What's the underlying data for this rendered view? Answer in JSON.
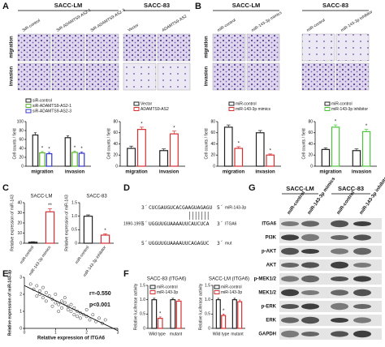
{
  "A": {
    "label": "A",
    "groups": [
      "SACC-LM",
      "SACC-83"
    ],
    "columns": [
      "SiR-control",
      "SiR-ADAMTS9-AS2-1",
      "SiR-ADAMTS9-AS2-3",
      "Vector",
      "ADAMTS9-AS2"
    ],
    "rows": [
      "migration",
      "invasion"
    ],
    "charts": [
      {
        "type": "bar",
        "ylabel": "Cell counts / field",
        "categories": [
          "migration",
          "invasion"
        ],
        "ylim": [
          0,
          100
        ],
        "yticks": [
          0,
          20,
          40,
          60,
          80,
          100
        ],
        "series": [
          {
            "name": "siR-control",
            "color": "#222222",
            "values": [
              70,
              64
            ],
            "errors": [
              5,
              4
            ]
          },
          {
            "name": "siR-ADAMTS9-AS2-1",
            "color": "#5cb531",
            "values": [
              30,
              31
            ],
            "errors": [
              3,
              3
            ],
            "sig": [
              "*",
              "*"
            ]
          },
          {
            "name": "siR-ADAMTS9-AS2-3",
            "color": "#3535d0",
            "values": [
              28,
              29
            ],
            "errors": [
              3,
              3
            ],
            "sig": [
              "*",
              "*"
            ]
          }
        ]
      },
      {
        "type": "bar",
        "ylabel": "Cell counts / field",
        "categories": [
          "migration",
          "invasion"
        ],
        "ylim": [
          0,
          80
        ],
        "yticks": [
          0,
          20,
          40,
          60,
          80
        ],
        "series": [
          {
            "name": "Vector",
            "color": "#222222",
            "values": [
              32,
              28
            ],
            "errors": [
              4,
              3
            ]
          },
          {
            "name": "ADAMTS9-AS2",
            "color": "#d63031",
            "values": [
              66,
              58
            ],
            "errors": [
              4,
              5
            ],
            "sig": [
              "*",
              "*"
            ]
          }
        ]
      }
    ]
  },
  "B": {
    "label": "B",
    "groups": [
      "SACC-LM",
      "SACC-83"
    ],
    "columns": [
      "miR-control",
      "miR-143-3p mimics",
      "miR-control",
      "miR-143-3p inhibitor"
    ],
    "rows": [
      "migration",
      "invasion"
    ],
    "charts": [
      {
        "type": "bar",
        "ylabel": "Cell counts / field",
        "categories": [
          "migration",
          "invasion"
        ],
        "ylim": [
          0,
          80
        ],
        "yticks": [
          0,
          20,
          40,
          60,
          80
        ],
        "series": [
          {
            "name": "miR-control",
            "color": "#222222",
            "values": [
              70,
              60
            ],
            "errors": [
              4,
              4
            ]
          },
          {
            "name": "miR-143-3p mimics",
            "color": "#d63031",
            "values": [
              32,
              20
            ],
            "errors": [
              3,
              2
            ],
            "sig": [
              "*",
              "*"
            ]
          }
        ]
      },
      {
        "type": "bar",
        "ylabel": "Cell counts / field",
        "categories": [
          "migration",
          "invasion"
        ],
        "ylim": [
          0,
          80
        ],
        "yticks": [
          0,
          20,
          40,
          60,
          80
        ],
        "series": [
          {
            "name": "miR-control",
            "color": "#222222",
            "values": [
              30,
              28
            ],
            "errors": [
              3,
              3
            ]
          },
          {
            "name": "miR-143-3p inhibitor",
            "color": "#4cc43a",
            "values": [
              70,
              62
            ],
            "errors": [
              4,
              4
            ],
            "sig": [
              "*",
              "*"
            ]
          }
        ]
      }
    ]
  },
  "C": {
    "label": "C",
    "charts": [
      {
        "type": "bar",
        "title": "SACC-LM",
        "ylabel": "Relative expression of miR-143",
        "categories": [
          "miR-control",
          "miR-143-3p mimics"
        ],
        "values": [
          1,
          31
        ],
        "errors": [
          0.5,
          3
        ],
        "sig": [
          null,
          "**"
        ],
        "colors": [
          "#222222",
          "#d63031"
        ],
        "ylim": [
          0,
          40
        ],
        "yticks": [
          0,
          10,
          20,
          30,
          40
        ]
      },
      {
        "type": "bar",
        "title": "SACC-83",
        "ylabel": "Relative expression of miR-143",
        "categories": [
          "miR-control",
          "miR-143-3p inhibitor"
        ],
        "values": [
          1,
          0.3
        ],
        "errors": [
          0.05,
          0.05
        ],
        "sig": [
          null,
          "*"
        ],
        "colors": [
          "#222222",
          "#d63031"
        ],
        "ylim": [
          0,
          1.5
        ],
        "yticks": [
          0,
          0.5,
          {
            "value": 1,
            "label": "1.0"
          },
          1.5
        ]
      }
    ]
  },
  "D": {
    "label": "D",
    "lines": [
      {
        "end5": "3´",
        "seq": "CUCGAUGUCACGAAGUAGAGU",
        "end3": "5´",
        "name": "miR-143-3p"
      },
      {
        "site": "1990-1997:",
        "end5": "5´",
        "seq": "UGGUUGUAAAAUUCAUCUCA",
        "end3": "3´",
        "name": "ITGA6"
      },
      {
        "end5": "5´",
        "seq": "UGGUUGUAAAAUUCAGAGUC",
        "end3": "3´",
        "name": "mut"
      }
    ]
  },
  "E": {
    "label": "E",
    "chart": {
      "type": "scatter",
      "xlabel": "Relative expression of ITGA6",
      "ylabel": "Relative expression of miR-143-3p",
      "annotations": [
        "r=-0.550",
        "p<0.001"
      ],
      "xlim": [
        0,
        3
      ],
      "ylim": [
        0,
        3
      ],
      "xticks": [
        0,
        1,
        2,
        3
      ],
      "yticks": [
        0,
        1,
        2,
        3
      ],
      "x": [
        0.2,
        0.3,
        0.4,
        0.5,
        0.5,
        0.6,
        0.7,
        0.7,
        0.8,
        0.9,
        1.0,
        1.0,
        1.1,
        1.2,
        1.2,
        1.3,
        1.4,
        1.4,
        1.5,
        1.6,
        1.6,
        1.7,
        1.8,
        1.8,
        1.9,
        2.0,
        2.1,
        2.2,
        2.3,
        2.4,
        2.5,
        2.6,
        0.4,
        0.9,
        1.3,
        1.7,
        2.0,
        0.6,
        1.1,
        1.5
      ],
      "values": [
        2.6,
        2.3,
        2.5,
        2.0,
        2.2,
        1.8,
        2.1,
        1.6,
        1.9,
        1.7,
        1.5,
        2.0,
        1.4,
        1.6,
        1.2,
        1.5,
        1.1,
        1.3,
        1.0,
        1.2,
        0.8,
        1.0,
        0.9,
        0.6,
        0.8,
        0.7,
        0.5,
        0.8,
        0.4,
        0.6,
        0.3,
        0.5,
        1.9,
        1.3,
        1.8,
        0.7,
        1.1,
        2.4,
        1.0,
        1.4
      ]
    }
  },
  "F": {
    "label": "F",
    "charts": [
      {
        "type": "bar",
        "title": "SACC-83 (ITGA6)",
        "ylabel": "Relative luciferase activity",
        "categories": [
          "Wild type",
          "mutant"
        ],
        "ylim": [
          0,
          1.5
        ],
        "yticks": [
          0,
          0.5,
          {
            "value": 1,
            "label": "1.0"
          },
          1.5
        ],
        "series": [
          {
            "name": "miR-control",
            "color": "#222222",
            "values": [
              1,
              1
            ],
            "errors": [
              0.05,
              0.05
            ]
          },
          {
            "name": "miR-143-3p",
            "color": "#d63031",
            "values": [
              0.35,
              0.95
            ],
            "errors": [
              0.05,
              0.06
            ],
            "sig": [
              "*",
              null
            ]
          }
        ]
      },
      {
        "type": "bar",
        "title": "SACC-LM (ITGA6)",
        "ylabel": "Relative luciferase activity",
        "categories": [
          "Wild type",
          "mutant"
        ],
        "ylim": [
          0,
          1.5
        ],
        "yticks": [
          0,
          0.5,
          {
            "value": 1,
            "label": "1.0"
          },
          1.5
        ],
        "series": [
          {
            "name": "miR-control",
            "color": "#222222",
            "values": [
              1,
              1
            ],
            "errors": [
              0.05,
              0.05
            ]
          },
          {
            "name": "miR-143-3p",
            "color": "#d63031",
            "values": [
              0.45,
              0.93
            ],
            "errors": [
              0.05,
              0.06
            ],
            "sig": [
              "*",
              null
            ]
          }
        ]
      }
    ]
  },
  "G": {
    "label": "G",
    "groups": [
      "SACC-LM",
      "SACC-83"
    ],
    "lanes": [
      "miR-control",
      "miR-143-3p mimics",
      "miR-control",
      "miR-143-3p inhibitor"
    ],
    "proteins": [
      "ITGA6",
      "PI3K",
      "p-AKT",
      "AKT",
      "p-MEK1/2",
      "MEK1/2",
      "p-ERK",
      "ERK",
      "GAPDH"
    ]
  }
}
